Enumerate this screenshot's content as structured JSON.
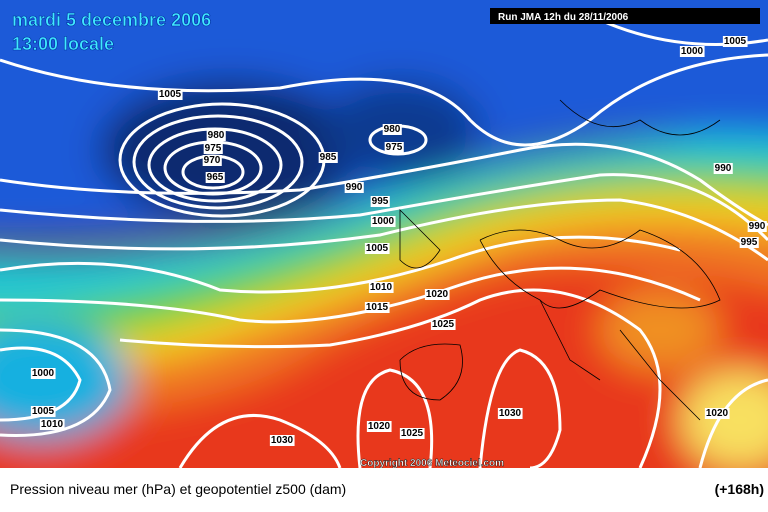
{
  "header": {
    "date": "mardi 5 decembre 2006",
    "time": "13:00 locale",
    "run": "Run JMA 12h du 28/11/2006"
  },
  "map": {
    "copyright": "Copyright 2006 Meteociel.com",
    "isobar_labels": [
      "1005",
      "1000",
      "1005",
      "980",
      "975",
      "980",
      "975",
      "970",
      "965",
      "985",
      "990",
      "995",
      "1000",
      "1005",
      "990",
      "990",
      "995",
      "1010",
      "1020",
      "1015",
      "1025",
      "1000",
      "1005",
      "1010",
      "1030",
      "1020",
      "1025",
      "1030",
      "1020"
    ]
  },
  "footer": {
    "caption": "Pression niveau mer (hPa) et geopotentiel z500 (dam)",
    "lead": "(+168h)"
  }
}
